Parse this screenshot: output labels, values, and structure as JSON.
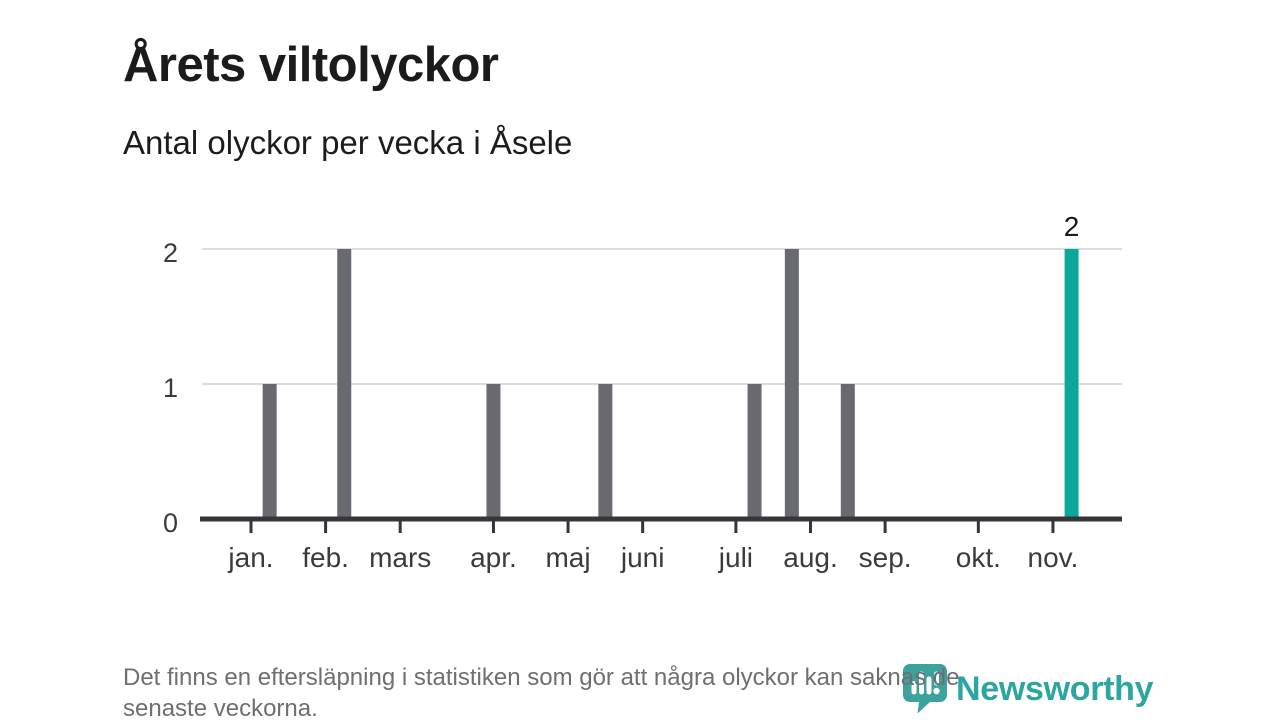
{
  "page": {
    "title": "Årets viltolyckor",
    "subtitle": "Antal olyckor per vecka i Åsele"
  },
  "footnote": {
    "lines": [
      "Det finns en eftersläpning i statistiken som gör att några olyckor kan saknas de",
      "senaste veckorna."
    ]
  },
  "brand": {
    "name": "Newsworthy",
    "logo_icon": "newsworthy-pin-barchart-icon",
    "color": "#2da5a0"
  },
  "chart_data": {
    "type": "bar",
    "title": "Årets viltolyckor",
    "subtitle": "Antal olyckor per vecka i Åsele",
    "x_unit": "vecka",
    "ylim": [
      0,
      2
    ],
    "yticks": [
      "0",
      "1",
      "2"
    ],
    "grid": true,
    "legend_position": "none",
    "month_ticks": [
      {
        "label": "jan.",
        "week": 0
      },
      {
        "label": "feb.",
        "week": 4
      },
      {
        "label": "mars",
        "week": 8
      },
      {
        "label": "apr.",
        "week": 13
      },
      {
        "label": "maj",
        "week": 17
      },
      {
        "label": "juni",
        "week": 21
      },
      {
        "label": "juli",
        "week": 26
      },
      {
        "label": "aug.",
        "week": 30
      },
      {
        "label": "sep.",
        "week": 34
      },
      {
        "label": "okt.",
        "week": 39
      },
      {
        "label": "nov.",
        "week": 43
      }
    ],
    "bars": [
      {
        "week": 1,
        "value": 1
      },
      {
        "week": 5,
        "value": 2
      },
      {
        "week": 13,
        "value": 1
      },
      {
        "week": 19,
        "value": 1
      },
      {
        "week": 27,
        "value": 1
      },
      {
        "week": 29,
        "value": 2
      },
      {
        "week": 32,
        "value": 1
      },
      {
        "week": 44,
        "value": 2,
        "highlight": true,
        "label": "2"
      }
    ],
    "colors": {
      "bar": "#696970",
      "highlight": "#0ba79c",
      "axis": "#35353a",
      "grid": "#dcdcdc",
      "tick_label": "#3b3b3b",
      "value_label": "#1a1a1a"
    }
  }
}
